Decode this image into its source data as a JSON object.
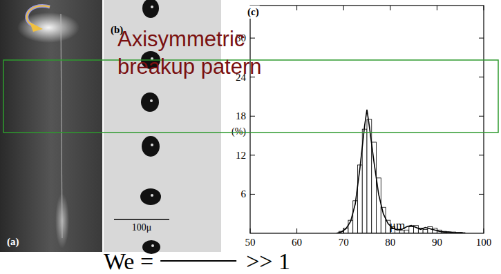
{
  "chart_data": {
    "type": "histogram",
    "panel_label": "(c)",
    "x_label": "μm",
    "y_label": "(%)",
    "bins": [
      68,
      69,
      70,
      71,
      72,
      73,
      74,
      75,
      76,
      77,
      78,
      79,
      80,
      81,
      82,
      83,
      84,
      85,
      86,
      87,
      88,
      89,
      90,
      91,
      92,
      93,
      94,
      95,
      96
    ],
    "counts": [
      0,
      0.3,
      0.8,
      2,
      5,
      10.5,
      16,
      17.5,
      14,
      8.5,
      4,
      2,
      1,
      0.6,
      0.4,
      0.5,
      1,
      1.2,
      0.8,
      0.6,
      1,
      0.8,
      0.5,
      0.3,
      0.2,
      0.2,
      0.1,
      0.1
    ],
    "color": "#000000",
    "curve": {
      "x": [
        68.5,
        69.5,
        70.5,
        71.5,
        72.5,
        73.5,
        74.5,
        75.0,
        75.5,
        76.5,
        77.5,
        78.5,
        79.5,
        80.5,
        81.5,
        82.5,
        83.5,
        84.5,
        85.5,
        86.5,
        87.5,
        88.5,
        89.5,
        90.5,
        91.5,
        92.5,
        93.5,
        94.5,
        95.5
      ],
      "values": [
        0,
        0.2,
        0.7,
        1.8,
        4.5,
        10,
        16.5,
        19,
        16.5,
        11,
        6,
        3,
        1.5,
        0.8,
        0.5,
        0.6,
        1,
        1.2,
        0.9,
        0.6,
        0.9,
        0.7,
        0.5,
        0.3,
        0.2,
        0.2,
        0.1,
        0.1,
        0.1
      ]
    },
    "xlim": [
      50,
      100
    ],
    "ylim": [
      0,
      35
    ],
    "xticks": [
      50,
      60,
      70,
      80,
      90,
      100
    ],
    "yticks": [
      6,
      12,
      18,
      24,
      30
    ],
    "grid": false
  },
  "panels": {
    "a": {
      "label": "(a)"
    },
    "b": {
      "label": "(b)",
      "scale_bar": "100μ"
    }
  },
  "overlay": {
    "text_lines": [
      "Axisymmetric",
      "breakup patern"
    ],
    "equation": {
      "left": "We =",
      "right": ">> 1"
    }
  }
}
